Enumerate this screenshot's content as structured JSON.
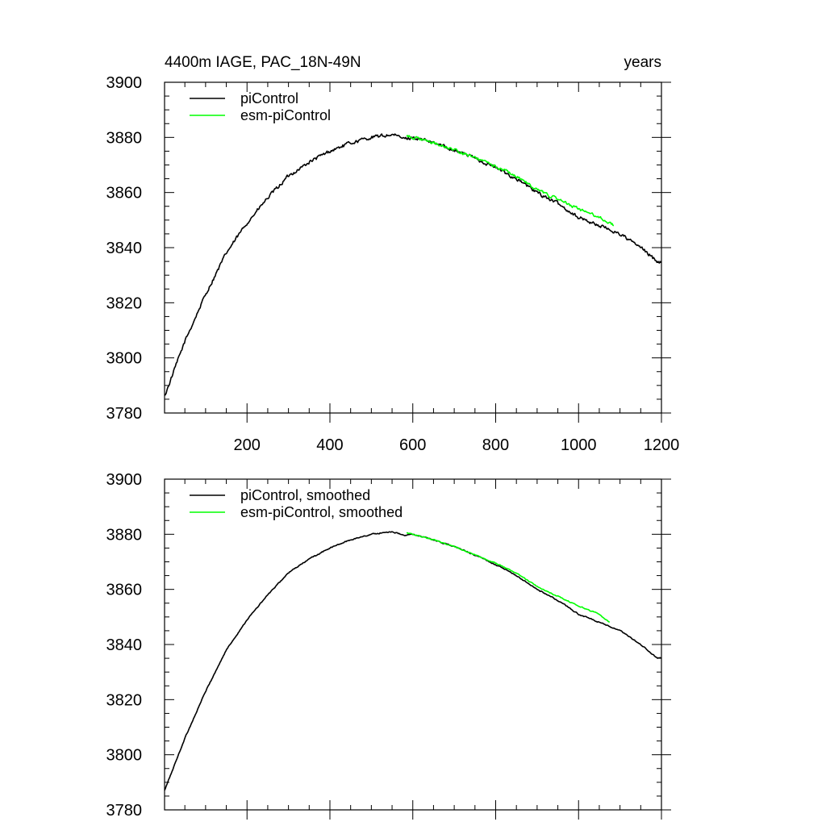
{
  "chart_data": [
    {
      "type": "line",
      "title_left": "4400m IAGE, PAC_18N-49N",
      "title_right": "years",
      "xlabel": "",
      "ylabel": "",
      "xlim": [
        1,
        1200
      ],
      "ylim": [
        3780,
        3900
      ],
      "xticks": [
        200,
        400,
        600,
        800,
        1000,
        1200
      ],
      "xtick_labels_shown": true,
      "yticks": [
        3780,
        3800,
        3820,
        3840,
        3860,
        3880,
        3900
      ],
      "legend_position": "top-left",
      "series": [
        {
          "name": "piControl",
          "color": "#000000",
          "noise": 0.55,
          "x": [
            1,
            50,
            100,
            150,
            200,
            250,
            300,
            350,
            400,
            450,
            500,
            550,
            580,
            600,
            650,
            700,
            750,
            800,
            850,
            900,
            950,
            1000,
            1050,
            1100,
            1150,
            1190,
            1200
          ],
          "y": [
            3786,
            3806,
            3823,
            3838,
            3849,
            3858,
            3866,
            3871,
            3875,
            3878,
            3880,
            3881,
            3879.5,
            3880,
            3878,
            3875.5,
            3872.5,
            3869,
            3865,
            3860,
            3856,
            3851,
            3848,
            3845,
            3840,
            3835,
            3835
          ]
        },
        {
          "name": "esm-piControl",
          "color": "#00ff00",
          "noise": 0.45,
          "x": [
            585,
            600,
            650,
            700,
            750,
            800,
            850,
            900,
            950,
            1000,
            1050,
            1085
          ],
          "y": [
            3880.5,
            3880,
            3878,
            3875.5,
            3872.5,
            3869.5,
            3866,
            3861,
            3857.5,
            3854,
            3851,
            3848
          ]
        }
      ]
    },
    {
      "type": "line",
      "title_left": "",
      "title_right": "",
      "xlabel": "",
      "ylabel": "",
      "xlim": [
        1,
        1200
      ],
      "ylim": [
        3780,
        3900
      ],
      "xticks": [
        200,
        400,
        600,
        800,
        1000,
        1200
      ],
      "xtick_labels_shown": false,
      "yticks": [
        3780,
        3800,
        3820,
        3840,
        3860,
        3880,
        3900
      ],
      "legend_position": "top-left",
      "series": [
        {
          "name": "piControl, smoothed",
          "color": "#000000",
          "noise": 0.18,
          "x": [
            1,
            50,
            100,
            150,
            200,
            250,
            300,
            350,
            400,
            450,
            500,
            550,
            580,
            600,
            650,
            700,
            750,
            800,
            850,
            900,
            950,
            1000,
            1050,
            1100,
            1150,
            1190,
            1200
          ],
          "y": [
            3787,
            3806,
            3823,
            3838,
            3849,
            3858,
            3866,
            3871,
            3875,
            3878,
            3880,
            3881,
            3879.5,
            3880,
            3878,
            3875.5,
            3872.5,
            3869,
            3865,
            3860,
            3856,
            3851,
            3848,
            3845,
            3840,
            3835,
            3835
          ]
        },
        {
          "name": "esm-piControl, smoothed",
          "color": "#00ff00",
          "noise": 0.15,
          "x": [
            585,
            600,
            650,
            700,
            750,
            800,
            850,
            900,
            950,
            1000,
            1050,
            1075
          ],
          "y": [
            3880.5,
            3880,
            3878,
            3875.5,
            3872.5,
            3869.5,
            3866,
            3861,
            3857.5,
            3854,
            3851,
            3848
          ]
        }
      ]
    }
  ]
}
